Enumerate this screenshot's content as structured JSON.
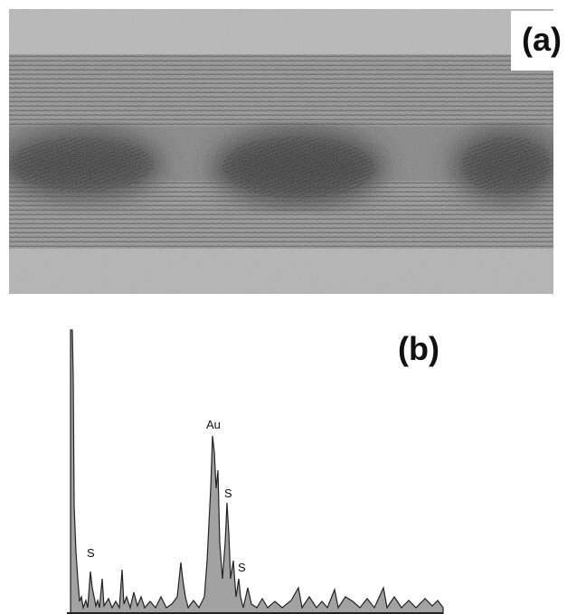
{
  "panels": [
    {
      "label": "(a)"
    },
    {
      "label": "(b)",
      "peaks": [
        "Au",
        "S",
        "S",
        "S"
      ]
    }
  ]
}
